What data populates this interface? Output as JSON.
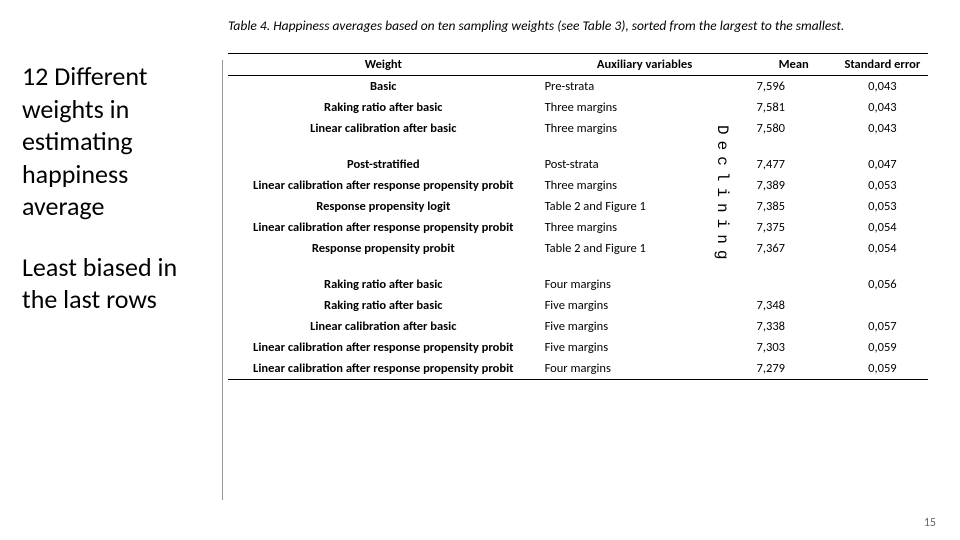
{
  "caption": "Table 4. Happiness averages based on ten sampling weights (see Table 3), sorted from the largest to the smallest.",
  "headers": {
    "c1": "Weight",
    "c2": "Auxiliary variables",
    "c3": "Mean",
    "c4": "Standard error"
  },
  "left_text1": "12 Different weights in estimating happiness average",
  "left_text2": "Least biased in the last rows",
  "declining": "Declining",
  "rows": [
    {
      "w": "Basic",
      "aux": "Pre-strata",
      "mean": "7,596",
      "se": "0,043"
    },
    {
      "w": "Raking ratio after basic",
      "aux": "Three margins",
      "mean": "7,581",
      "se": "0,043"
    },
    {
      "w": "Linear calibration after basic",
      "aux": "Three margins",
      "mean": "7,580",
      "se": "0,043"
    }
  ],
  "rows2": [
    {
      "w": "Post-stratified",
      "aux": "Post-strata",
      "mean": "7,477",
      "se": "0,047"
    },
    {
      "w": "Linear calibration after response propensity probit",
      "aux": "Three margins",
      "mean": "7,389",
      "se": "0,053"
    },
    {
      "w": "Response propensity logit",
      "aux": "Table 2 and Figure 1",
      "mean": "7,385",
      "se": "0,053"
    },
    {
      "w": "Linear calibration after response propensity probit",
      "aux": "Three margins",
      "mean": "7,375",
      "se": "0,054"
    },
    {
      "w": "Response propensity probit",
      "aux": "Table 2 and Figure 1",
      "mean": "7,367",
      "se": "0,054"
    }
  ],
  "rows3": [
    {
      "w": "Raking ratio after basic",
      "aux": "Four margins",
      "mean": "",
      "se": "0,056"
    },
    {
      "w": "Raking ratio after basic",
      "aux": "Five margins",
      "mean": "7,348",
      "se": ""
    },
    {
      "w": "Linear calibration after basic",
      "aux": "Five margins",
      "mean": "7,338",
      "se": "0,057"
    },
    {
      "w": "Linear calibration after response propensity probit",
      "aux": "Five margins",
      "mean": "7,303",
      "se": "0,059"
    },
    {
      "w": "Linear calibration after response propensity probit",
      "aux": "Four margins",
      "mean": "7,279",
      "se": "0,059"
    }
  ],
  "pagenum": "15",
  "colors": {
    "text": "#000000",
    "bg": "#ffffff",
    "line": "#999999"
  }
}
